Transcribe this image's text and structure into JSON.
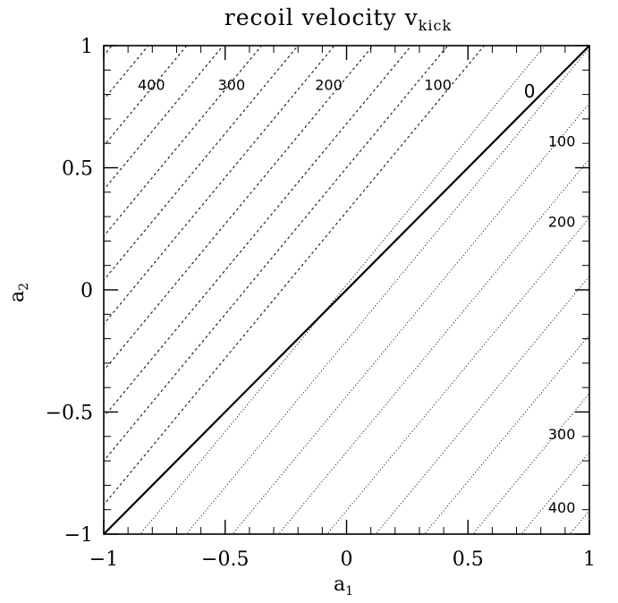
{
  "chart_data": {
    "type": "line",
    "title": "recoil velocity v",
    "title_subscript": "kick",
    "xlabel": "a",
    "xlabel_subscript": "1",
    "ylabel": "a",
    "ylabel_subscript": "2",
    "xlim": [
      -1,
      1
    ],
    "ylim": [
      -1,
      1
    ],
    "xticks": [
      -1,
      -0.5,
      0,
      0.5,
      1
    ],
    "yticks": [
      -1,
      -0.5,
      0,
      0.5,
      1
    ],
    "xtick_labels": [
      "−1",
      "−0.5",
      "0",
      "0.5",
      "1"
    ],
    "ytick_labels": [
      "−1",
      "−0.5",
      "0",
      "0.5",
      "1"
    ],
    "grid": false,
    "legend": "none",
    "line_color": "#000000",
    "contour_slope": 1.2,
    "series": [
      {
        "label": "0",
        "style": "solid",
        "side": "zero",
        "x": [
          -1,
          1
        ],
        "y": [
          -1,
          1
        ]
      },
      {
        "style": "dashed",
        "side": "upper",
        "offset": 0.12
      },
      {
        "style": "dashed",
        "side": "upper",
        "offset": 0.3
      },
      {
        "style": "dashed",
        "side": "upper",
        "offset": 0.48
      },
      {
        "style": "dashed",
        "side": "upper",
        "offset": 0.67
      },
      {
        "style": "dashed",
        "side": "upper",
        "offset": 0.86
      },
      {
        "style": "dashed",
        "side": "upper",
        "offset": 1.04
      },
      {
        "style": "dashed",
        "side": "upper",
        "offset": 1.22
      },
      {
        "style": "dashed",
        "side": "upper",
        "offset": 1.41
      },
      {
        "style": "dashed",
        "side": "upper",
        "offset": 1.59
      },
      {
        "style": "dashed",
        "side": "upper",
        "offset": 1.78
      },
      {
        "style": "dashed",
        "side": "upper",
        "offset": 1.96
      },
      {
        "style": "dashed",
        "side": "upper",
        "offset": 2.14
      },
      {
        "style": "dotted",
        "side": "lower",
        "offset": 0.15
      },
      {
        "style": "dotted",
        "side": "lower",
        "offset": 0.34
      },
      {
        "style": "dotted",
        "side": "lower",
        "offset": 0.53
      },
      {
        "style": "dotted",
        "side": "lower",
        "offset": 0.72
      },
      {
        "style": "dotted",
        "side": "lower",
        "offset": 0.92
      },
      {
        "style": "dotted",
        "side": "lower",
        "offset": 1.12
      },
      {
        "style": "dotted",
        "side": "lower",
        "offset": 1.32
      },
      {
        "style": "dotted",
        "side": "lower",
        "offset": 1.52
      },
      {
        "style": "dotted",
        "side": "lower",
        "offset": 1.72
      },
      {
        "style": "dotted",
        "side": "lower",
        "offset": 1.92
      }
    ],
    "annotations": [
      {
        "text": "400",
        "x": -0.86,
        "y": 0.84
      },
      {
        "text": "300",
        "x": -0.53,
        "y": 0.84
      },
      {
        "text": "200",
        "x": -0.13,
        "y": 0.84
      },
      {
        "text": "100",
        "x": 0.32,
        "y": 0.84
      },
      {
        "text": "0",
        "x": 0.73,
        "y": 0.81
      },
      {
        "text": "100",
        "x": 0.83,
        "y": 0.61
      },
      {
        "text": "200",
        "x": 0.83,
        "y": 0.28
      },
      {
        "text": "300",
        "x": 0.83,
        "y": -0.59
      },
      {
        "text": "400",
        "x": 0.83,
        "y": -0.89
      }
    ]
  }
}
